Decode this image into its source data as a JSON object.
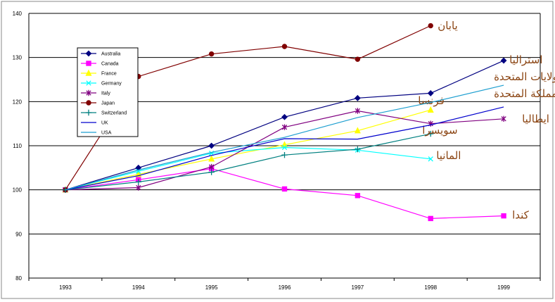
{
  "chart_data": {
    "type": "line",
    "x": [
      "1993",
      "1994",
      "1995",
      "1996",
      "1997",
      "1998",
      "1999"
    ],
    "ylim": [
      80,
      140
    ],
    "yticks": [
      80,
      90,
      100,
      110,
      120,
      130,
      140
    ],
    "grid": true,
    "legend_position": "top-left inside plot",
    "series": [
      {
        "name": "Australia",
        "color": "#000080",
        "marker": "diamond",
        "values": [
          100,
          105,
          110,
          116.5,
          120.8,
          121.9,
          129.3
        ],
        "end_label": "استراليا"
      },
      {
        "name": "Canada",
        "color": "#FF00FF",
        "marker": "square",
        "values": [
          100,
          102.3,
          104.8,
          100.2,
          98.7,
          93.5,
          94.1
        ],
        "end_label": "كندا"
      },
      {
        "name": "France",
        "color": "#FFFF00",
        "marker": "triangle",
        "values": [
          100,
          103.5,
          107,
          110.2,
          113.4,
          118.1,
          null
        ],
        "end_label": "فرنسا"
      },
      {
        "name": "Germany",
        "color": "#00FFFF",
        "marker": "x",
        "values": [
          100,
          104.2,
          108.3,
          109.6,
          109,
          107,
          null
        ],
        "end_label": "المانيا"
      },
      {
        "name": "Italy",
        "color": "#800080",
        "marker": "star",
        "values": [
          100,
          100.5,
          105.2,
          114.2,
          117.9,
          115,
          116.1
        ],
        "end_label": "ايطاليا"
      },
      {
        "name": "Japan",
        "color": "#800000",
        "marker": "circle",
        "values": [
          100,
          125.7,
          130.8,
          132.5,
          129.6,
          137.2,
          null
        ],
        "end_label": "يابان"
      },
      {
        "name": "Switzerland",
        "color": "#008080",
        "marker": "plus",
        "values": [
          100,
          101.8,
          104,
          107.9,
          109.2,
          112.7,
          null
        ],
        "end_label": "سويسرا"
      },
      {
        "name": "UK",
        "color": "#0000CD",
        "marker": "none",
        "values": [
          100,
          103.2,
          107.8,
          111.6,
          111.5,
          114.7,
          118.8
        ],
        "end_label": "المملكة المتحدة"
      },
      {
        "name": "USA",
        "color": "#1E9FD0",
        "marker": "none",
        "values": [
          100,
          104.5,
          108.5,
          111.9,
          116.4,
          119.8,
          123.7
        ],
        "end_label": "الولايات المتحدة"
      }
    ]
  }
}
